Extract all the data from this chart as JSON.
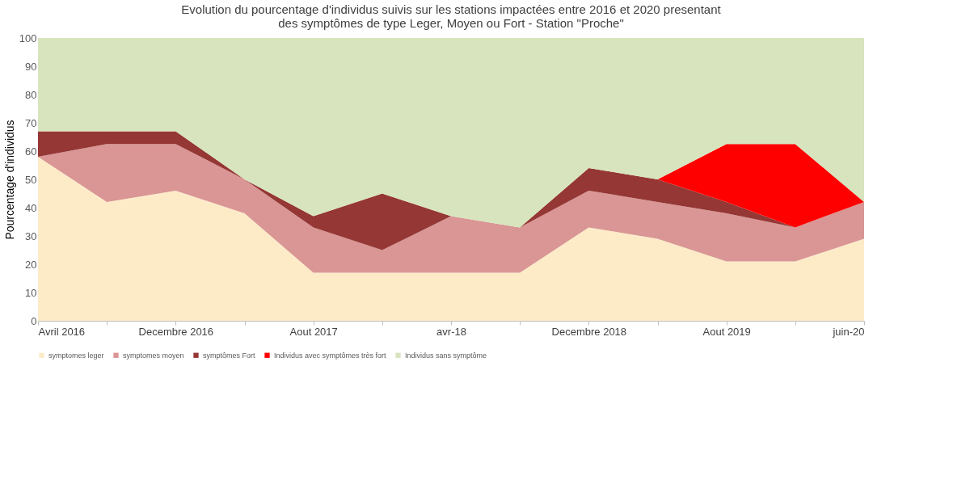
{
  "chart_data": {
    "type": "area",
    "stacked": true,
    "title": [
      "Evolution du pourcentage d'individus suivis sur les stations impactées entre 2016 et 2020  presentant",
      "des symptômes de type Leger, Moyen ou Fort - Station \"Proche\""
    ],
    "ylabel": "Pourcentage d'individus",
    "categories": [
      "Avril 2016",
      null,
      "Decembre 2016",
      null,
      "Aout 2017",
      null,
      "avr-18",
      null,
      "Decembre 2018",
      null,
      "Aout 2019",
      null,
      "juin-20"
    ],
    "series": [
      {
        "name": "symptomes leger",
        "color": "#fdebc8",
        "values": [
          58,
          42,
          46,
          38,
          17,
          17,
          17,
          17,
          33,
          29,
          21,
          21,
          29
        ]
      },
      {
        "name": "symptomes moyen",
        "color": "#d99694",
        "values": [
          0,
          20.5,
          16.5,
          12,
          16,
          8,
          20,
          16,
          13,
          13,
          17,
          12,
          13
        ]
      },
      {
        "name": "symptômes Fort",
        "color": "#953735",
        "values": [
          9,
          4.5,
          4.5,
          0,
          4,
          20,
          0,
          0,
          8,
          8,
          4,
          0,
          0
        ]
      },
      {
        "name": "Individus avec symptômes très fort",
        "color": "#ff0000",
        "values": [
          0,
          0,
          0,
          0,
          0,
          0,
          0,
          0,
          0,
          0,
          20.5,
          29.5,
          0
        ]
      },
      {
        "name": "Individus sans symptôme",
        "color": "#d7e4bd",
        "values": [
          33,
          33,
          33,
          50,
          63,
          55,
          63,
          67,
          46,
          50,
          37.5,
          37.5,
          58
        ]
      }
    ],
    "ylim": [
      0,
      100
    ],
    "yticks": [
      0,
      10,
      20,
      30,
      40,
      50,
      60,
      70,
      80,
      90,
      100
    ],
    "grid": false,
    "legend": "bottom"
  }
}
